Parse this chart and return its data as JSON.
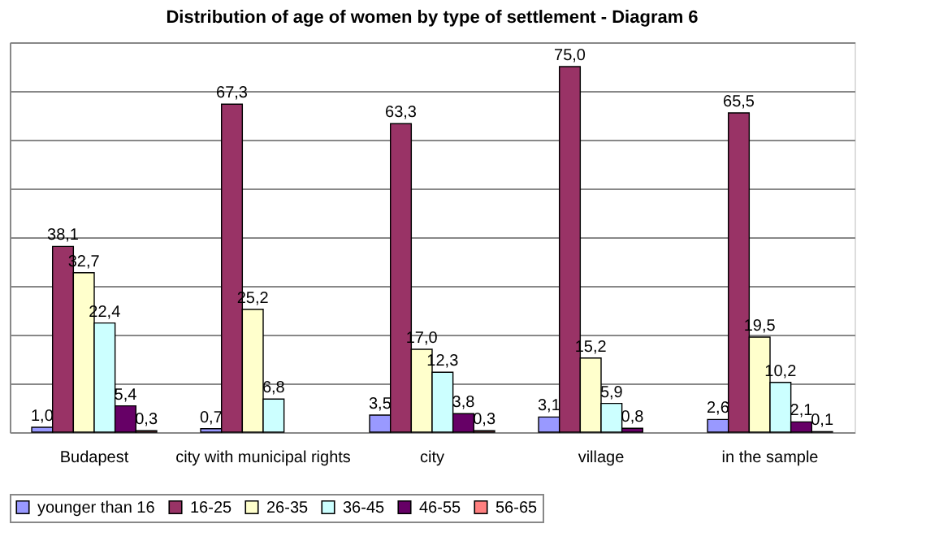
{
  "chart_data": {
    "type": "bar",
    "title": "Distribution of age of women by type of settlement  - Diagram 6",
    "categories": [
      "Budapest",
      "city with municipal rights",
      "city",
      "village",
      "in the sample"
    ],
    "series": [
      {
        "name": "younger than 16",
        "color": "#9999ff",
        "values": [
          1.0,
          0.7,
          3.5,
          3.1,
          2.6
        ],
        "value_labels": [
          "1,0",
          "0,7",
          "3,5",
          "3,1",
          "2,6"
        ]
      },
      {
        "name": "16-25",
        "color": "#993366",
        "values": [
          38.1,
          67.3,
          63.3,
          75.0,
          65.5
        ],
        "value_labels": [
          "38,1",
          "67,3",
          "63,3",
          "75,0",
          "65,5"
        ]
      },
      {
        "name": "26-35",
        "color": "#ffffcc",
        "values": [
          32.7,
          25.2,
          17.0,
          15.2,
          19.5
        ],
        "value_labels": [
          "32,7",
          "25,2",
          "17,0",
          "15,2",
          "19,5"
        ]
      },
      {
        "name": "36-45",
        "color": "#ccffff",
        "values": [
          22.4,
          6.8,
          12.3,
          5.9,
          10.2
        ],
        "value_labels": [
          "22,4",
          "6,8",
          "12,3",
          "5,9",
          "10,2"
        ]
      },
      {
        "name": "46-55",
        "color": "#660066",
        "values": [
          5.4,
          null,
          3.8,
          0.8,
          2.1
        ],
        "value_labels": [
          "5,4",
          null,
          "3,8",
          "0,8",
          "2,1"
        ]
      },
      {
        "name": "56-65",
        "color": "#ff8080",
        "values": [
          0.3,
          null,
          0.3,
          null,
          0.1
        ],
        "value_labels": [
          "0,3",
          null,
          "0,3",
          null,
          "0,1"
        ]
      }
    ],
    "ylim": [
      0,
      80
    ],
    "yticks": [
      {
        "value": 0,
        "label": null
      },
      {
        "value": 10,
        "label": null
      },
      {
        "value": 20,
        "label": null
      },
      {
        "value": 30,
        "label": null
      },
      {
        "value": 40,
        "label": null
      },
      {
        "value": 50,
        "label": null
      },
      {
        "value": 60,
        "label": null
      },
      {
        "value": 70,
        "label": null
      },
      {
        "value": 80,
        "label": null
      }
    ],
    "tick_labels": "x",
    "grid": "y",
    "legend": "bottom"
  }
}
